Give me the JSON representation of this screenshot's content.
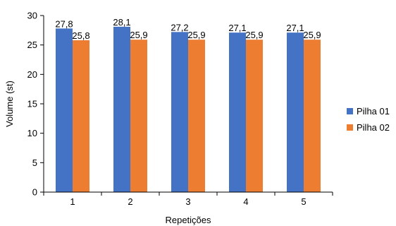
{
  "chart_data": {
    "type": "bar",
    "xlabel": "Repetições",
    "ylabel": "Volume (st)",
    "categories": [
      "1",
      "2",
      "3",
      "4",
      "5"
    ],
    "ylim": [
      0,
      30
    ],
    "yticks": [
      0,
      5,
      10,
      15,
      20,
      25,
      30
    ],
    "grid": false,
    "legend_position": "right",
    "series": [
      {
        "name": "Pilha 01",
        "color": "#4472C4",
        "values": [
          27.8,
          28.1,
          27.2,
          27.1,
          27.1
        ],
        "labels": [
          "27,8",
          "28,1",
          "27,2",
          "27,1",
          "27,1"
        ]
      },
      {
        "name": "Pilha 02",
        "color": "#ED7D31",
        "values": [
          25.8,
          25.9,
          25.9,
          25.9,
          25.9
        ],
        "labels": [
          "25,8",
          "25,9",
          "25,9",
          "25,9",
          "25,9"
        ]
      }
    ]
  }
}
